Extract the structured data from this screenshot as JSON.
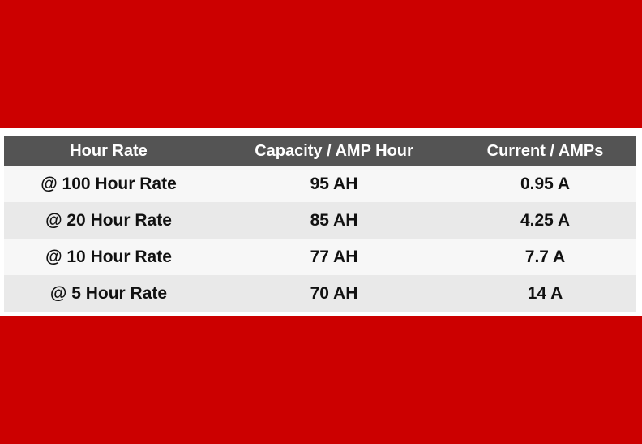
{
  "colors": {
    "band": "#cc0000",
    "header_bg": "#545454",
    "header_text": "#ffffff",
    "row_light": "#f7f7f7",
    "row_dark": "#e9e9e9"
  },
  "table": {
    "headers": [
      "Hour Rate",
      "Capacity / AMP Hour",
      "Current / AMPs"
    ],
    "rows": [
      [
        "@ 100 Hour Rate",
        "95 AH",
        "0.95 A"
      ],
      [
        "@ 20 Hour Rate",
        "85 AH",
        "4.25 A"
      ],
      [
        "@ 10 Hour Rate",
        "77 AH",
        "7.7 A"
      ],
      [
        "@ 5 Hour Rate",
        "70 AH",
        "14 A"
      ]
    ]
  }
}
